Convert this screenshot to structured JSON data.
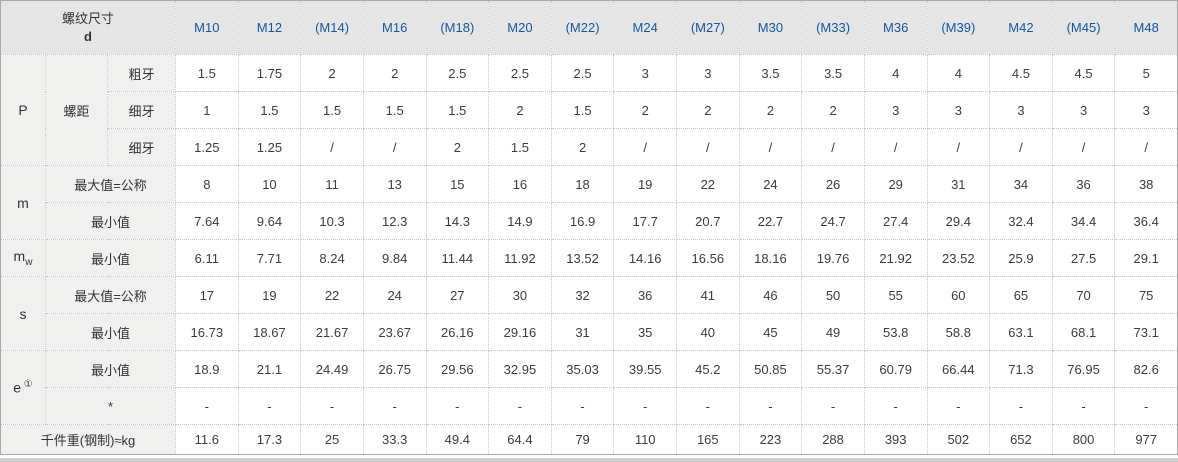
{
  "table": {
    "corner": {
      "line1": "螺纹尺寸",
      "line2": "d"
    },
    "columns": [
      "M10",
      "M12",
      "(M14)",
      "M16",
      "(M18)",
      "M20",
      "(M22)",
      "M24",
      "(M27)",
      "M30",
      "(M33)",
      "M36",
      "(M39)",
      "M42",
      "(M45)",
      "M48"
    ],
    "groups": [
      {
        "id": "P",
        "label": {
          "text": "P"
        },
        "mid": "螺距",
        "rows": [
          {
            "sub": "粗牙",
            "values": [
              "1.5",
              "1.75",
              "2",
              "2",
              "2.5",
              "2.5",
              "2.5",
              "3",
              "3",
              "3.5",
              "3.5",
              "4",
              "4",
              "4.5",
              "4.5",
              "5"
            ]
          },
          {
            "sub": "细牙",
            "values": [
              "1",
              "1.5",
              "1.5",
              "1.5",
              "1.5",
              "2",
              "1.5",
              "2",
              "2",
              "2",
              "2",
              "3",
              "3",
              "3",
              "3",
              "3"
            ]
          },
          {
            "sub": "细牙",
            "values": [
              "1.25",
              "1.25",
              "/",
              "/",
              "2",
              "1.5",
              "2",
              "/",
              "/",
              "/",
              "/",
              "/",
              "/",
              "/",
              "/",
              "/"
            ]
          }
        ]
      },
      {
        "id": "m",
        "label": {
          "text": "m"
        },
        "rows": [
          {
            "sub": "最大值=公称",
            "values": [
              "8",
              "10",
              "11",
              "13",
              "15",
              "16",
              "18",
              "19",
              "22",
              "24",
              "26",
              "29",
              "31",
              "34",
              "36",
              "38"
            ]
          },
          {
            "sub": "最小值",
            "values": [
              "7.64",
              "9.64",
              "10.3",
              "12.3",
              "14.3",
              "14.9",
              "16.9",
              "17.7",
              "20.7",
              "22.7",
              "24.7",
              "27.4",
              "29.4",
              "32.4",
              "34.4",
              "36.4"
            ]
          }
        ]
      },
      {
        "id": "mw",
        "label": {
          "text": "m",
          "subscript": "w"
        },
        "rows": [
          {
            "sub": "最小值",
            "values": [
              "6.11",
              "7.71",
              "8.24",
              "9.84",
              "11.44",
              "11.92",
              "13.52",
              "14.16",
              "16.56",
              "18.16",
              "19.76",
              "21.92",
              "23.52",
              "25.9",
              "27.5",
              "29.1"
            ]
          }
        ]
      },
      {
        "id": "s",
        "label": {
          "text": "s"
        },
        "rows": [
          {
            "sub": "最大值=公称",
            "values": [
              "17",
              "19",
              "22",
              "24",
              "27",
              "30",
              "32",
              "36",
              "41",
              "46",
              "50",
              "55",
              "60",
              "65",
              "70",
              "75"
            ]
          },
          {
            "sub": "最小值",
            "values": [
              "16.73",
              "18.67",
              "21.67",
              "23.67",
              "26.16",
              "29.16",
              "31",
              "35",
              "40",
              "45",
              "49",
              "53.8",
              "58.8",
              "63.1",
              "68.1",
              "73.1"
            ]
          }
        ]
      },
      {
        "id": "e",
        "label": {
          "text": "e",
          "superscript": "①"
        },
        "rows": [
          {
            "sub": "最小值",
            "values": [
              "18.9",
              "21.1",
              "24.49",
              "26.75",
              "29.56",
              "32.95",
              "35.03",
              "39.55",
              "45.2",
              "50.85",
              "55.37",
              "60.79",
              "66.44",
              "71.3",
              "76.95",
              "82.6"
            ]
          },
          {
            "sub": "*",
            "values": [
              "-",
              "-",
              "-",
              "-",
              "-",
              "-",
              "-",
              "-",
              "-",
              "-",
              "-",
              "-",
              "-",
              "-",
              "-",
              "-"
            ]
          }
        ]
      }
    ],
    "footer": {
      "label": "千件重(钢制)≈kg",
      "values": [
        "11.6",
        "17.3",
        "25",
        "33.3",
        "49.4",
        "64.4",
        "79",
        "110",
        "165",
        "223",
        "288",
        "393",
        "502",
        "652",
        "800",
        "977"
      ]
    }
  },
  "colors": {
    "header_bg": "#e5e5e5",
    "label_bg": "#f0f0ef",
    "header_text_blue": "#1257a5",
    "border_dotted": "#c6c6c6",
    "border_outer": "#a9a9a9",
    "data_text": "#3c3c3c"
  },
  "layout": {
    "label_col_widths": [
      45,
      62,
      68
    ]
  }
}
